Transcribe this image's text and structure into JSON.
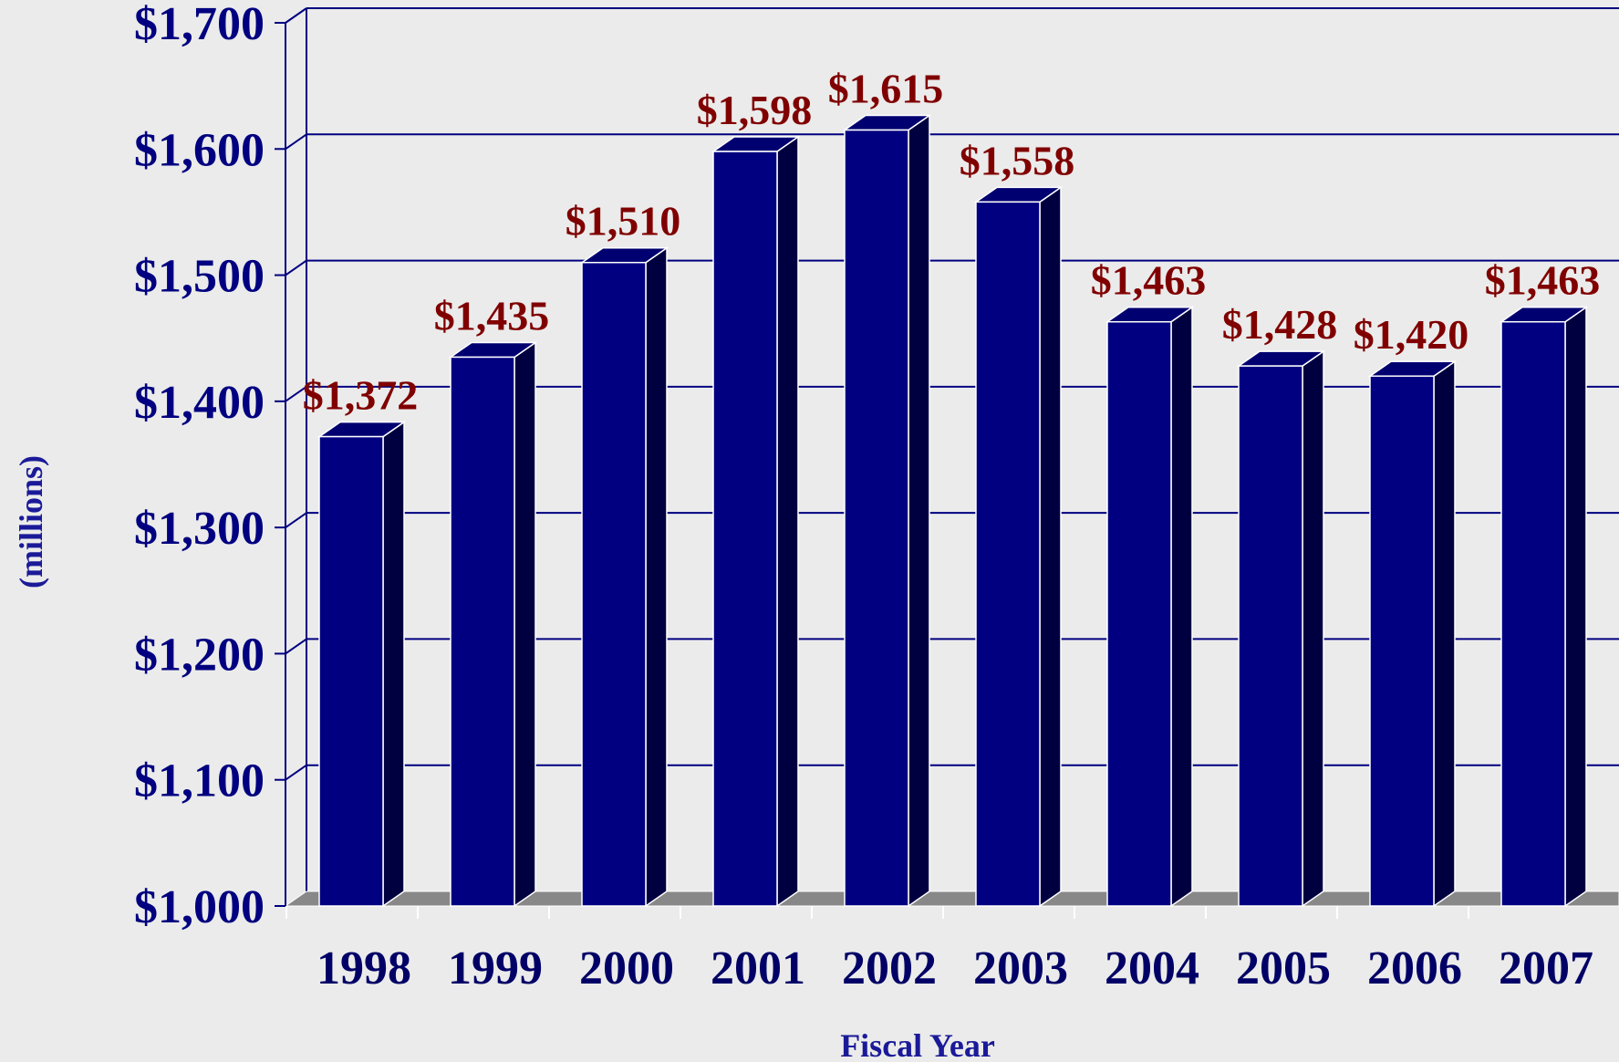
{
  "chart_data": {
    "type": "bar",
    "categories": [
      "1998",
      "1999",
      "2000",
      "2001",
      "2002",
      "2003",
      "2004",
      "2005",
      "2006",
      "2007"
    ],
    "values": [
      1372,
      1435,
      1510,
      1598,
      1615,
      1558,
      1463,
      1428,
      1420,
      1463
    ],
    "value_labels": [
      "$1,372",
      "$1,435",
      "$1,510",
      "$1,598",
      "$1,615",
      "$1,558",
      "$1,463",
      "$1,428",
      "$1,420",
      "$1,463"
    ],
    "title": "",
    "xlabel": "Fiscal Year",
    "ylabel": "(millions)",
    "ylim": [
      1000,
      1700
    ],
    "yticks": [
      1000,
      1100,
      1200,
      1300,
      1400,
      1500,
      1600,
      1700
    ],
    "ytick_labels": [
      "$1,000",
      "$1,100",
      "$1,200",
      "$1,300",
      "$1,400",
      "$1,500",
      "$1,600",
      "$1,700"
    ],
    "grid": true,
    "style": "3d-bar",
    "colors": {
      "bar_front": "#000080",
      "bar_side": "#000040",
      "bar_top": "#000070",
      "bar_edge": "#ffffff",
      "gridline": "#000080",
      "floor": "#888888",
      "value_label": "#800000",
      "tick_label": "#000080",
      "background": "#ebebeb"
    }
  }
}
